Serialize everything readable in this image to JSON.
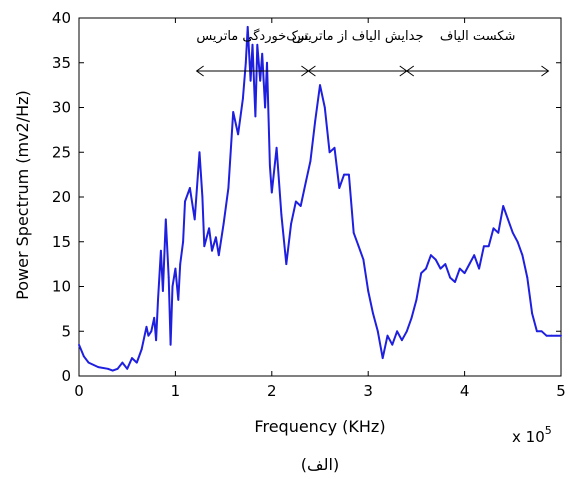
{
  "chart_data": {
    "type": "line",
    "xlabel": "Frequency (KHz)",
    "ylabel": "Power Spectrum (mv2/Hz)",
    "x_multiplier_label": "x 10",
    "x_multiplier_exponent": "5",
    "xlim": [
      0,
      5
    ],
    "ylim": [
      0,
      40
    ],
    "xticks": [
      "0",
      "1",
      "2",
      "3",
      "4",
      "5"
    ],
    "yticks": [
      "0",
      "5",
      "10",
      "15",
      "20",
      "25",
      "30",
      "35",
      "40"
    ],
    "grid": false,
    "line_color": "#1f1fe0",
    "series": [
      {
        "x": [
          0,
          0.05,
          0.1,
          0.2,
          0.3,
          0.35,
          0.4,
          0.45,
          0.5,
          0.55,
          0.6,
          0.65,
          0.7,
          0.72,
          0.75,
          0.78,
          0.8,
          0.82,
          0.85,
          0.87,
          0.9,
          0.93,
          0.95,
          0.97,
          1.0,
          1.03,
          1.05,
          1.08,
          1.1,
          1.15,
          1.2,
          1.25,
          1.28,
          1.3,
          1.35,
          1.38,
          1.42,
          1.45,
          1.5,
          1.55,
          1.6,
          1.65,
          1.7,
          1.73,
          1.75,
          1.78,
          1.8,
          1.83,
          1.85,
          1.88,
          1.9,
          1.93,
          1.95,
          1.98,
          2.0,
          2.05,
          2.1,
          2.15,
          2.2,
          2.25,
          2.3,
          2.35,
          2.4,
          2.45,
          2.5,
          2.55,
          2.6,
          2.65,
          2.7,
          2.75,
          2.8,
          2.85,
          2.9,
          2.95,
          3.0,
          3.05,
          3.1,
          3.15,
          3.2,
          3.25,
          3.3,
          3.35,
          3.4,
          3.45,
          3.5,
          3.55,
          3.6,
          3.65,
          3.7,
          3.75,
          3.8,
          3.85,
          3.9,
          3.95,
          4.0,
          4.05,
          4.1,
          4.15,
          4.2,
          4.25,
          4.3,
          4.35,
          4.4,
          4.45,
          4.5,
          4.55,
          4.6,
          4.65,
          4.7,
          4.75,
          4.8,
          4.85,
          4.9,
          4.95,
          5.0
        ],
        "y": [
          3.5,
          2.2,
          1.5,
          1.0,
          0.8,
          0.6,
          0.8,
          1.5,
          0.8,
          2.0,
          1.5,
          3.0,
          5.5,
          4.5,
          5.0,
          6.5,
          4.0,
          8.5,
          14.0,
          9.5,
          17.5,
          11.0,
          3.5,
          10.0,
          12.0,
          8.5,
          12.5,
          15.0,
          19.5,
          21.0,
          17.5,
          25.0,
          20.0,
          14.5,
          16.5,
          14.0,
          15.5,
          13.5,
          17.0,
          21.0,
          29.5,
          27.0,
          31.0,
          35.0,
          39.0,
          33.0,
          37.0,
          29.0,
          37.0,
          33.0,
          36.0,
          30.0,
          35.0,
          23.5,
          20.5,
          25.5,
          18.0,
          12.5,
          17.0,
          19.5,
          19.0,
          21.5,
          24.0,
          28.5,
          32.5,
          30.0,
          25.0,
          25.5,
          21.0,
          22.5,
          22.5,
          16.0,
          14.5,
          13.0,
          9.5,
          7.0,
          5.0,
          2.0,
          4.5,
          3.5,
          5.0,
          4.0,
          5.0,
          6.5,
          8.5,
          11.5,
          12.0,
          13.5,
          13.0,
          12.0,
          12.5,
          11.0,
          10.5,
          12.0,
          11.5,
          12.5,
          13.5,
          12.0,
          14.5,
          14.5,
          16.5,
          16.0,
          19.0,
          17.5,
          16.0,
          15.0,
          13.5,
          11.0,
          7.0,
          5.0,
          5.0,
          4.5,
          4.5,
          4.5,
          4.5
        ]
      }
    ],
    "annotations": [
      {
        "text": "ترک‌خوردگی ماتریس",
        "x_start": 1.22,
        "x_end": 2.38
      },
      {
        "text": "جدایش الیاف از ماتریس",
        "x_start": 2.38,
        "x_end": 3.4
      },
      {
        "text": "شکست الیاف",
        "x_start": 3.4,
        "x_end": 4.87
      }
    ],
    "caption": "(الف)"
  }
}
